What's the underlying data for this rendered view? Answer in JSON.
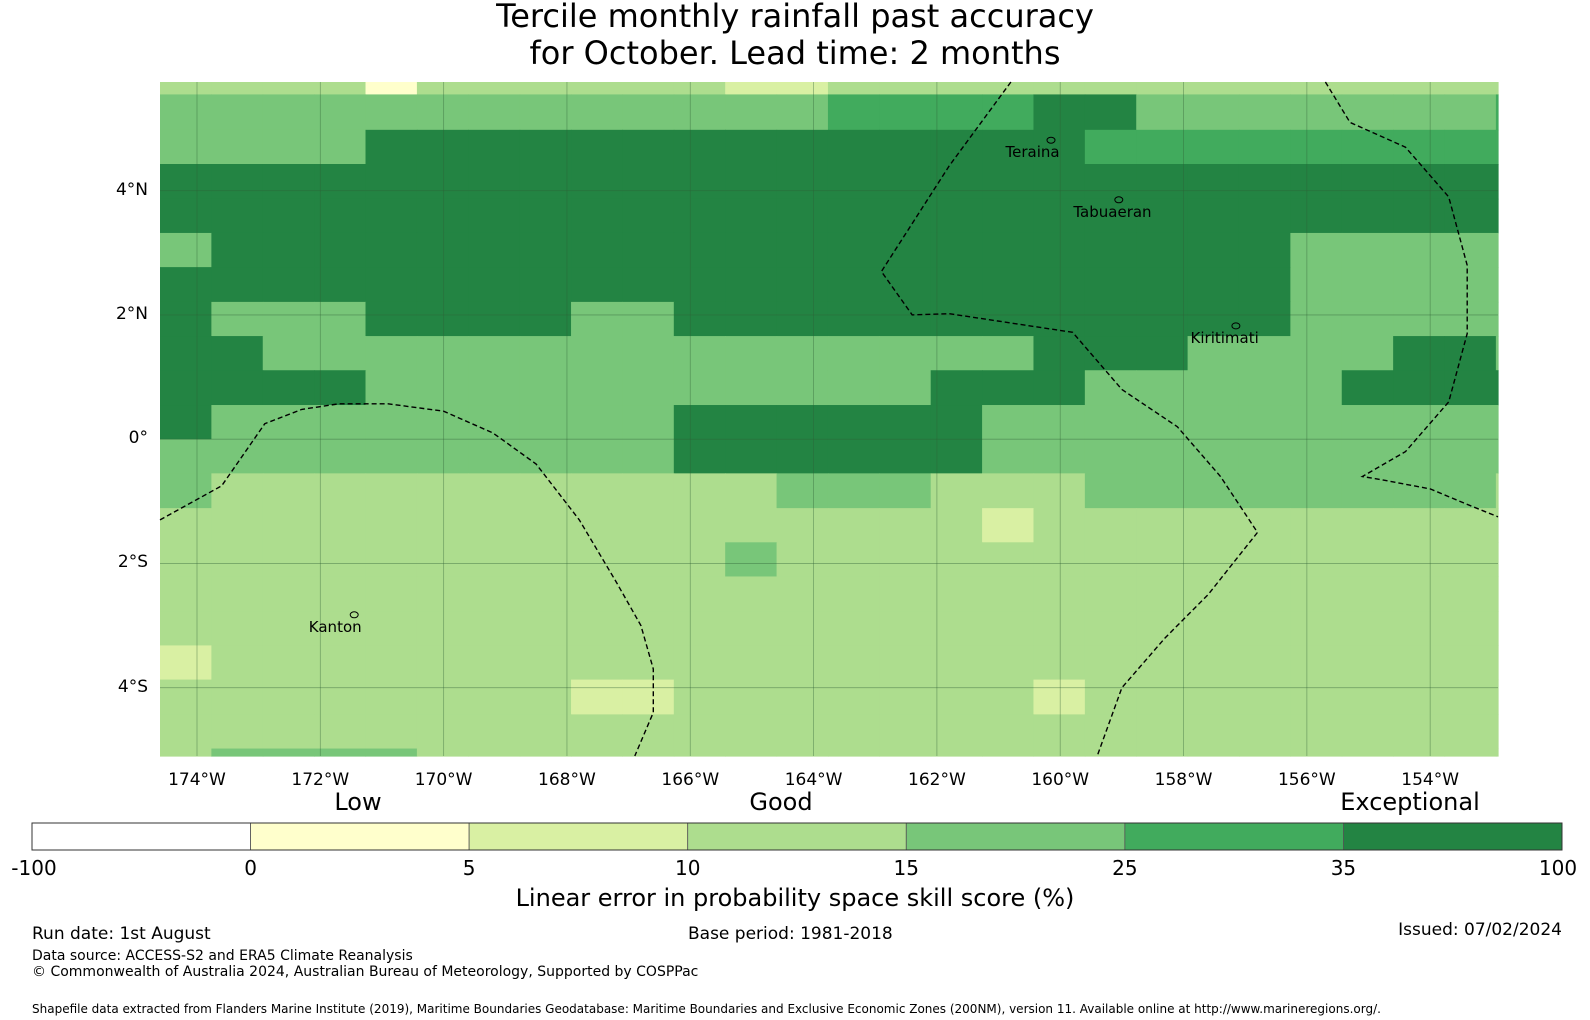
{
  "title": {
    "line1": "Tercile monthly rainfall past accuracy",
    "line2": "for October. Lead time: 2 months"
  },
  "map": {
    "lon_range": [
      -174.6,
      -152.9
    ],
    "lat_range": [
      -5.1,
      5.75
    ],
    "lat_ticks": [
      {
        "lat": 4,
        "label": "4°N"
      },
      {
        "lat": 2,
        "label": "2°N"
      },
      {
        "lat": 0,
        "label": "0°"
      },
      {
        "lat": -2,
        "label": "2°S"
      },
      {
        "lat": -4,
        "label": "4°S"
      }
    ],
    "lon_ticks": [
      {
        "lon": -174,
        "label": "174°W"
      },
      {
        "lon": -172,
        "label": "172°W"
      },
      {
        "lon": -170,
        "label": "170°W"
      },
      {
        "lon": -168,
        "label": "168°W"
      },
      {
        "lon": -166,
        "label": "166°W"
      },
      {
        "lon": -164,
        "label": "164°W"
      },
      {
        "lon": -162,
        "label": "162°W"
      },
      {
        "lon": -160,
        "label": "160°W"
      },
      {
        "lon": -158,
        "label": "158°W"
      },
      {
        "lon": -156,
        "label": "156°W"
      },
      {
        "lon": -154,
        "label": "154°W"
      }
    ],
    "places": [
      {
        "name": "Teraina",
        "lon": -160.4,
        "lat": 4.62
      },
      {
        "name": "Tabuaeran",
        "lon": -159.3,
        "lat": 3.66
      },
      {
        "name": "Kiritimati",
        "lon": -157.4,
        "lat": 1.63
      },
      {
        "name": "Kanton",
        "lon": -171.7,
        "lat": -3.02
      }
    ],
    "grid": {
      "cell_lon": 0.8333,
      "rows": [
        {
          "lat_top": 5.75,
          "lat_bottom": 5.55,
          "cells": "3333133333322333333333333333333333333333333333"
        },
        {
          "lat_top": 5.55,
          "lat_bottom": 4.98,
          "cells": "4444444444444555566444444455555554444456666666"
        },
        {
          "lat_top": 4.98,
          "lat_bottom": 4.43,
          "cells": "4444666666666666665555555554444456666666555665"
        },
        {
          "lat_top": 4.43,
          "lat_bottom": 3.87,
          "cells": "6666666666666666666666666666666666666666664466"
        },
        {
          "lat_top": 3.87,
          "lat_bottom": 3.32,
          "cells": "6666666666666666666666666666666664444444444433"
        },
        {
          "lat_top": 3.32,
          "lat_bottom": 2.77,
          "cells": "4666666666666666666666444444444444444444446644"
        },
        {
          "lat_top": 2.77,
          "lat_bottom": 2.21,
          "cells": "6666666666666666666666444444444444444444443333"
        },
        {
          "lat_top": 2.21,
          "lat_bottom": 1.66,
          "cells": "6444666644666666666666444444444444444444444443"
        },
        {
          "lat_top": 1.66,
          "lat_bottom": 1.11,
          "cells": "6644444444444444466644446644446644444444444444"
        },
        {
          "lat_top": 1.11,
          "lat_bottom": 0.55,
          "cells": "6666444444444446664444466664466444444444444444"
        },
        {
          "lat_top": 0.55,
          "lat_bottom": 0.0,
          "cells": "6444444444666666444444444444446644444444466446"
        },
        {
          "lat_top": 0.0,
          "lat_bottom": -0.55,
          "cells": "4444444444666666444444444444444444444444444444"
        },
        {
          "lat_top": -0.55,
          "lat_bottom": -1.11,
          "cells": "4333333333334443334444444433333334444444444444"
        },
        {
          "lat_top": -1.11,
          "lat_bottom": -1.66,
          "cells": "3333333333333333233333333333333333333333333344"
        },
        {
          "lat_top": -1.66,
          "lat_bottom": -2.21,
          "cells": "3333333333343333333333333333333333333333333333"
        },
        {
          "lat_top": -2.21,
          "lat_bottom": -2.77,
          "cells": "3333333333333333333333333333333333333333333333"
        },
        {
          "lat_top": -2.77,
          "lat_bottom": -3.32,
          "cells": "3333333333333333333333333333333343333333333333"
        },
        {
          "lat_top": -3.32,
          "lat_bottom": -3.87,
          "cells": "2333333333333333333333333333333333333333433333"
        },
        {
          "lat_top": -3.87,
          "lat_bottom": -4.43,
          "cells": "3333333322333333323333333333333334333333333332"
        },
        {
          "lat_top": -4.43,
          "lat_bottom": -4.98,
          "cells": "3333333333333333333333333333333333333333333322"
        },
        {
          "lat_top": -4.98,
          "lat_bottom": -5.1,
          "cells": "3444433333333333333333333333333333333333333332"
        }
      ]
    },
    "boundaries": [
      [
        [
          -174.6,
          -1.3
        ],
        [
          -173.6,
          -0.75
        ],
        [
          -172.9,
          0.25
        ],
        [
          -172.3,
          0.48
        ],
        [
          -171.7,
          0.57
        ],
        [
          -170.9,
          0.57
        ],
        [
          -170.0,
          0.45
        ],
        [
          -169.2,
          0.1
        ],
        [
          -168.5,
          -0.4
        ],
        [
          -167.8,
          -1.3
        ],
        [
          -167.2,
          -2.3
        ],
        [
          -166.8,
          -3.0
        ],
        [
          -166.6,
          -3.7
        ],
        [
          -166.6,
          -4.4
        ],
        [
          -166.9,
          -5.1
        ]
      ],
      [
        [
          -160.8,
          5.75
        ],
        [
          -161.8,
          4.4
        ],
        [
          -162.9,
          2.7
        ],
        [
          -162.4,
          2.0
        ],
        [
          -161.8,
          2.02
        ],
        [
          -159.8,
          1.72
        ],
        [
          -159.0,
          0.8
        ],
        [
          -158.1,
          0.2
        ],
        [
          -157.4,
          -0.6
        ],
        [
          -156.8,
          -1.5
        ],
        [
          -157.6,
          -2.5
        ],
        [
          -158.3,
          -3.2
        ],
        [
          -159.0,
          -4.0
        ],
        [
          -159.4,
          -5.1
        ]
      ],
      [
        [
          -155.7,
          5.75
        ],
        [
          -155.3,
          5.1
        ],
        [
          -154.4,
          4.7
        ],
        [
          -153.7,
          3.9
        ],
        [
          -153.4,
          2.8
        ],
        [
          -153.4,
          1.7
        ],
        [
          -153.7,
          0.6
        ],
        [
          -154.4,
          -0.2
        ],
        [
          -155.1,
          -0.6
        ],
        [
          -154.8,
          -0.65
        ],
        [
          -154.0,
          -0.8
        ],
        [
          -153.4,
          -1.05
        ],
        [
          -152.9,
          -1.25
        ]
      ]
    ]
  },
  "colorbar": {
    "boundaries": [
      "-100",
      "0",
      "5",
      "10",
      "15",
      "25",
      "35",
      "100"
    ],
    "colors": [
      "#ffffff",
      "#ffffcc",
      "#d9f0a3",
      "#addd8e",
      "#78c679",
      "#41ab5d",
      "#238443"
    ],
    "categories": [
      "Low",
      "Good",
      "Exceptional"
    ],
    "title": "Linear error in probability space skill score (%)"
  },
  "footer": {
    "run_date": "Run date: 1st August",
    "base_period": "Base period: 1981-2018",
    "issued": "Issued: 07/02/2024",
    "data_source": "Data source: ACCESS-S2 and ERA5 Climate Reanalysis",
    "copyright": "© Commonwealth of Australia 2024, Australian Bureau of Meteorology, Supported by COSPPac",
    "shapefile": "Shapefile data extracted from Flanders Marine Institute (2019), Maritime Boundaries Geodatabase: Maritime Boundaries and Exclusive Economic Zones (200NM), version 11. Available online at http://www.marineregions.org/."
  }
}
